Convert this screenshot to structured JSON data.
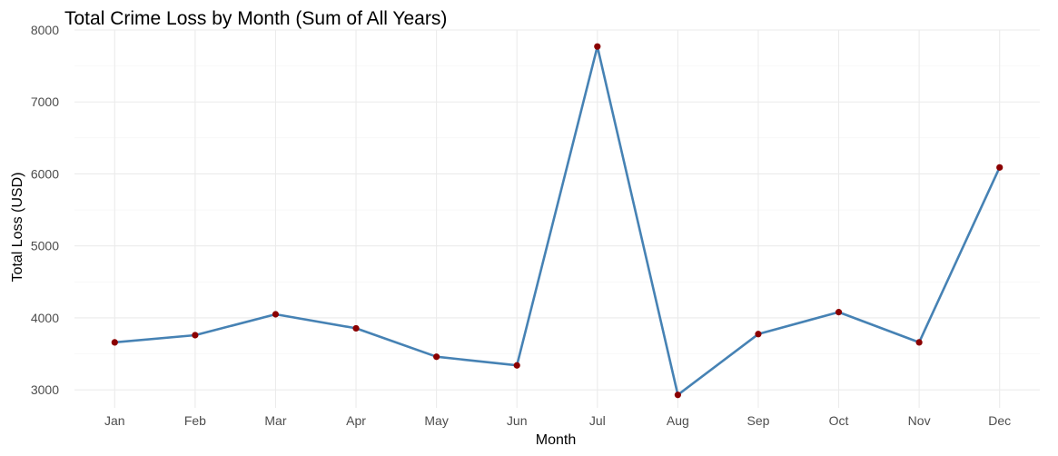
{
  "chart_data": {
    "type": "line",
    "title": "Total Crime Loss by Month (Sum of All Years)",
    "xlabel": "Month",
    "ylabel": "Total Loss (USD)",
    "categories": [
      "Jan",
      "Feb",
      "Mar",
      "Apr",
      "May",
      "Jun",
      "Jul",
      "Aug",
      "Sep",
      "Oct",
      "Nov",
      "Dec"
    ],
    "series": [
      {
        "values": [
          3660,
          3760,
          4050,
          3855,
          3460,
          3340,
          7770,
          2930,
          3775,
          4080,
          3660,
          6090
        ]
      }
    ],
    "yticks": [
      3000,
      4000,
      5000,
      6000,
      7000,
      8000
    ],
    "ylim": [
      2750,
      8000
    ],
    "grid": true,
    "line_color": "#4682b4",
    "point_color": "#8b0000"
  }
}
